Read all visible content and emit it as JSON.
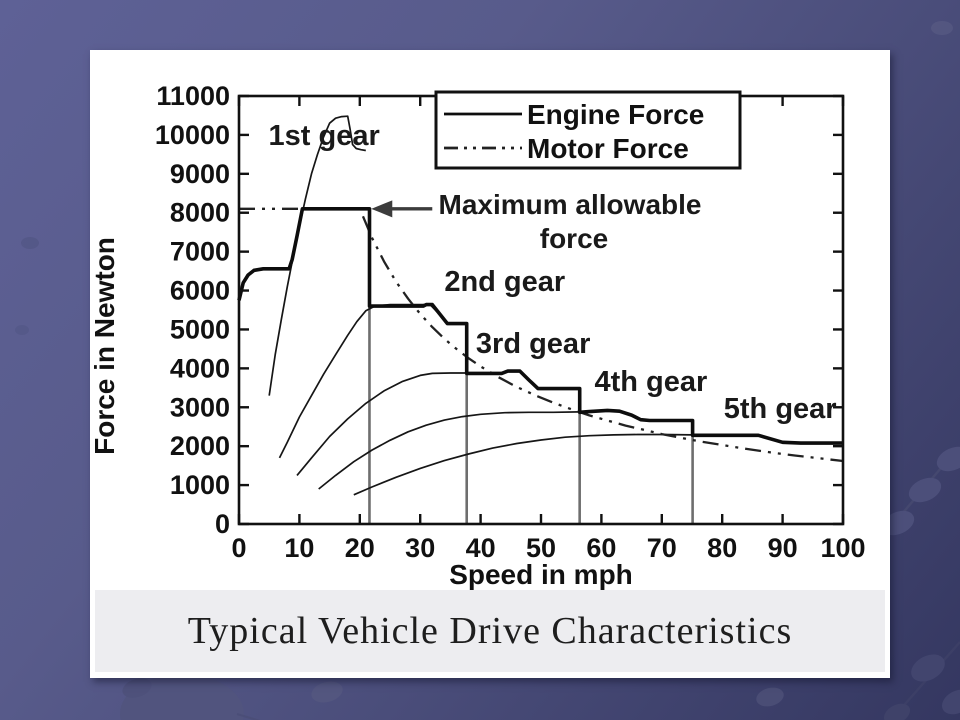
{
  "slide": {
    "caption": "Typical Vehicle Drive Characteristics"
  },
  "theme": {
    "background_top": "#5e6196",
    "background_bottom": "#343760",
    "panel": "#ffffff",
    "caption_strip": "#ededf0",
    "ink": "#111111",
    "shift_line_gray": "#6e6e6e",
    "arrow_gray": "#3c3c3c"
  },
  "chart_data": {
    "type": "line",
    "title": "",
    "xlabel": "Speed in mph",
    "ylabel": "Force in Newton",
    "xlim": [
      0,
      100
    ],
    "ylim": [
      0,
      11000
    ],
    "xticks": [
      0,
      10,
      20,
      30,
      40,
      50,
      60,
      70,
      80,
      90,
      100
    ],
    "yticks": [
      0,
      1000,
      2000,
      3000,
      4000,
      5000,
      6000,
      7000,
      8000,
      9000,
      10000,
      11000
    ],
    "grid": false,
    "max_allowable_force_N": 8100,
    "gear_shift_speeds_mph": [
      21.6,
      37.7,
      56.4,
      75.1
    ],
    "legend": {
      "position": "top-right",
      "entries": [
        {
          "label": "Engine Force",
          "style": "solid"
        },
        {
          "label": "Motor Force",
          "style": "dash-dot"
        }
      ]
    },
    "gear_shift_lines": [
      {
        "speed": 21.6,
        "top": 8100
      },
      {
        "speed": 37.7,
        "top": 5150
      },
      {
        "speed": 56.4,
        "top": 3480
      },
      {
        "speed": 75.1,
        "top": 2660
      }
    ],
    "series": [
      {
        "name": "1st gear engine force",
        "style": "solid-thin",
        "points": [
          [
            5,
            3300
          ],
          [
            6,
            4350
          ],
          [
            7,
            5250
          ],
          [
            8,
            6100
          ],
          [
            9,
            6900
          ],
          [
            10,
            7650
          ],
          [
            11,
            8350
          ],
          [
            12,
            9000
          ],
          [
            13,
            9500
          ],
          [
            14,
            9950
          ],
          [
            15,
            10300
          ],
          [
            16,
            10430
          ],
          [
            17,
            10470
          ],
          [
            18,
            10480
          ],
          [
            18.4,
            10150
          ],
          [
            18.8,
            9750
          ],
          [
            19.4,
            9650
          ],
          [
            20.2,
            9620
          ],
          [
            21,
            9600
          ]
        ]
      },
      {
        "name": "2nd gear engine force",
        "style": "solid-thin",
        "points": [
          [
            6.7,
            1700
          ],
          [
            8,
            2100
          ],
          [
            10,
            2750
          ],
          [
            12,
            3300
          ],
          [
            14,
            3850
          ],
          [
            16,
            4350
          ],
          [
            18,
            4850
          ],
          [
            19.5,
            5200
          ],
          [
            21,
            5480
          ],
          [
            22.5,
            5600
          ],
          [
            25,
            5640
          ],
          [
            28,
            5640
          ],
          [
            30.5,
            5640
          ],
          [
            31.5,
            5660
          ],
          [
            33,
            5420
          ],
          [
            34.5,
            5150
          ],
          [
            37.7,
            5150
          ]
        ]
      },
      {
        "name": "3rd gear engine force",
        "style": "solid-thin",
        "points": [
          [
            9.6,
            1250
          ],
          [
            12,
            1700
          ],
          [
            15,
            2250
          ],
          [
            18,
            2700
          ],
          [
            21,
            3100
          ],
          [
            24,
            3420
          ],
          [
            27,
            3660
          ],
          [
            30,
            3820
          ],
          [
            32,
            3870
          ],
          [
            35,
            3880
          ],
          [
            40,
            3880
          ],
          [
            43.5,
            3870
          ],
          [
            44.5,
            3930
          ],
          [
            46.5,
            3930
          ],
          [
            48,
            3700
          ],
          [
            49.5,
            3480
          ],
          [
            56.4,
            3480
          ]
        ]
      },
      {
        "name": "4th gear engine force",
        "style": "solid-thin",
        "points": [
          [
            13.2,
            900
          ],
          [
            16,
            1250
          ],
          [
            19,
            1600
          ],
          [
            22,
            1900
          ],
          [
            25,
            2150
          ],
          [
            28,
            2370
          ],
          [
            31,
            2540
          ],
          [
            34,
            2670
          ],
          [
            37,
            2760
          ],
          [
            40,
            2820
          ],
          [
            44,
            2860
          ],
          [
            48,
            2870
          ],
          [
            52,
            2870
          ],
          [
            56.4,
            2880
          ],
          [
            58,
            2890
          ],
          [
            61,
            2920
          ],
          [
            63,
            2900
          ],
          [
            65,
            2800
          ],
          [
            66.5,
            2680
          ],
          [
            68,
            2660
          ],
          [
            75.1,
            2660
          ]
        ]
      },
      {
        "name": "5th gear engine force",
        "style": "solid-thin",
        "points": [
          [
            19,
            750
          ],
          [
            22,
            950
          ],
          [
            26,
            1200
          ],
          [
            30,
            1430
          ],
          [
            34,
            1630
          ],
          [
            38,
            1800
          ],
          [
            42,
            1950
          ],
          [
            46,
            2070
          ],
          [
            50,
            2160
          ],
          [
            54,
            2230
          ],
          [
            58,
            2270
          ],
          [
            62,
            2290
          ],
          [
            66,
            2300
          ],
          [
            70,
            2300
          ],
          [
            75,
            2290
          ],
          [
            80,
            2280
          ],
          [
            86,
            2280
          ],
          [
            90,
            2100
          ],
          [
            93,
            2080
          ],
          [
            100,
            2080
          ]
        ]
      },
      {
        "name": "Motor Force",
        "style": "dash-dot",
        "points": [
          [
            0,
            8100
          ],
          [
            20,
            8100
          ],
          [
            22,
            7360
          ],
          [
            24,
            6750
          ],
          [
            26,
            6230
          ],
          [
            28,
            5790
          ],
          [
            30,
            5400
          ],
          [
            32,
            5060
          ],
          [
            34,
            4760
          ],
          [
            36,
            4500
          ],
          [
            38,
            4260
          ],
          [
            40,
            4050
          ],
          [
            43,
            3770
          ],
          [
            46,
            3520
          ],
          [
            49,
            3310
          ],
          [
            52,
            3120
          ],
          [
            55,
            2950
          ],
          [
            58,
            2790
          ],
          [
            61,
            2660
          ],
          [
            64,
            2530
          ],
          [
            67,
            2420
          ],
          [
            70,
            2310
          ],
          [
            73,
            2220
          ],
          [
            76,
            2130
          ],
          [
            80,
            2030
          ],
          [
            84,
            1930
          ],
          [
            88,
            1840
          ],
          [
            92,
            1760
          ],
          [
            96,
            1690
          ],
          [
            100,
            1620
          ]
        ]
      },
      {
        "name": "Engine Force envelope",
        "style": "solid-thick",
        "points": [
          [
            0,
            5750
          ],
          [
            0.7,
            6200
          ],
          [
            1.5,
            6400
          ],
          [
            2.5,
            6520
          ],
          [
            4,
            6560
          ],
          [
            8.3,
            6560
          ],
          [
            8.8,
            6800
          ],
          [
            9.6,
            7400
          ],
          [
            10.5,
            8100
          ],
          [
            21.6,
            8100
          ],
          [
            21.6,
            5600
          ],
          [
            30.5,
            5600
          ],
          [
            31,
            5640
          ],
          [
            32,
            5640
          ],
          [
            34.5,
            5150
          ],
          [
            37.7,
            5150
          ],
          [
            37.7,
            3870
          ],
          [
            43.5,
            3870
          ],
          [
            44.5,
            3930
          ],
          [
            46.5,
            3930
          ],
          [
            48,
            3700
          ],
          [
            49.5,
            3480
          ],
          [
            56.4,
            3480
          ],
          [
            56.4,
            2870
          ],
          [
            58,
            2890
          ],
          [
            61,
            2920
          ],
          [
            63,
            2900
          ],
          [
            65,
            2800
          ],
          [
            66.5,
            2680
          ],
          [
            68,
            2660
          ],
          [
            75.1,
            2660
          ],
          [
            75.1,
            2280
          ],
          [
            86,
            2280
          ],
          [
            90,
            2100
          ],
          [
            93,
            2080
          ],
          [
            100,
            2080
          ]
        ]
      }
    ],
    "annotations": {
      "max_force_arrow": {
        "line1": "Maximum allowable",
        "line2": "force",
        "text_speed": 54.8,
        "text_force": 8230,
        "arrow_from_speed": 32,
        "arrow_to_speed": 21.9,
        "arrow_force": 8100
      },
      "gear_labels": [
        {
          "label": "1st gear",
          "speed": 14.1,
          "force": 10000
        },
        {
          "label": "2nd gear",
          "speed": 44.0,
          "force": 6245
        },
        {
          "label": "3rd gear",
          "speed": 48.7,
          "force": 4652
        },
        {
          "label": "4th gear",
          "speed": 68.2,
          "force": 3675
        },
        {
          "label": "5th gear",
          "speed": 89.6,
          "force": 2981
        }
      ]
    }
  }
}
